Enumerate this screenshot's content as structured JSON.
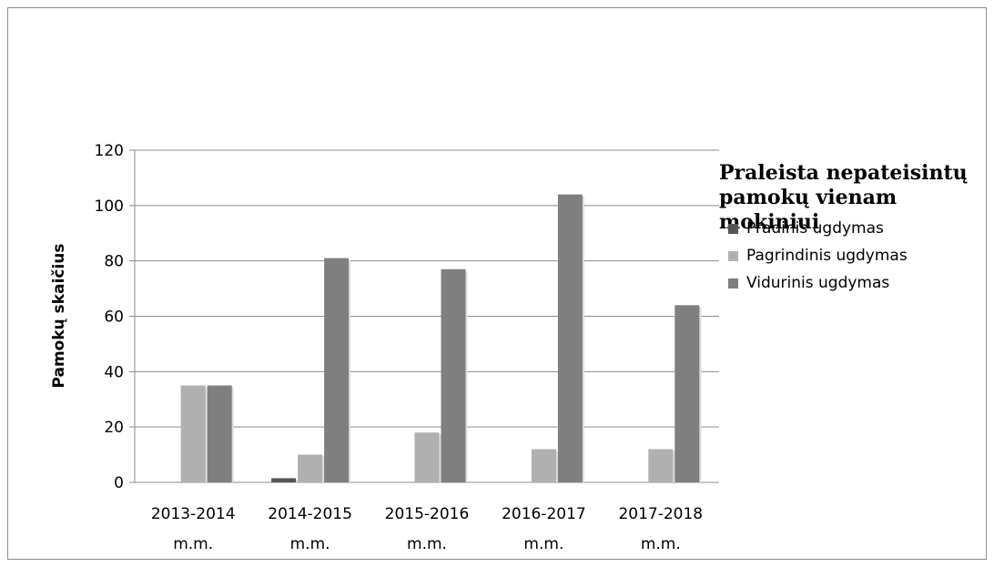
{
  "chart_data": {
    "type": "bar",
    "title": "Praleista nepateisintų pamokų vienam mokiniui",
    "ylabel": "Pamokų skaičius",
    "xlabel": "",
    "ylim": [
      0,
      120
    ],
    "yticks": [
      0,
      20,
      40,
      60,
      80,
      100,
      120
    ],
    "grid": true,
    "legend_position": "right",
    "categories": [
      [
        "2013-2014",
        "m.m."
      ],
      [
        "2014-2015",
        "m.m."
      ],
      [
        "2015-2016",
        "m.m."
      ],
      [
        "2016-2017",
        "m.m."
      ],
      [
        "2017-2018",
        "m.m."
      ]
    ],
    "series": [
      {
        "name": "Pradinis ugdymas",
        "color": "#555555",
        "values": [
          0,
          1.5,
          0,
          0,
          0
        ]
      },
      {
        "name": "Pagrindinis ugdymas",
        "color": "#b0b0b0",
        "values": [
          35,
          10,
          18,
          12,
          12
        ]
      },
      {
        "name": "Vidurinis ugdymas",
        "color": "#7f7f7f",
        "values": [
          35,
          81,
          77,
          104,
          64
        ]
      }
    ]
  }
}
